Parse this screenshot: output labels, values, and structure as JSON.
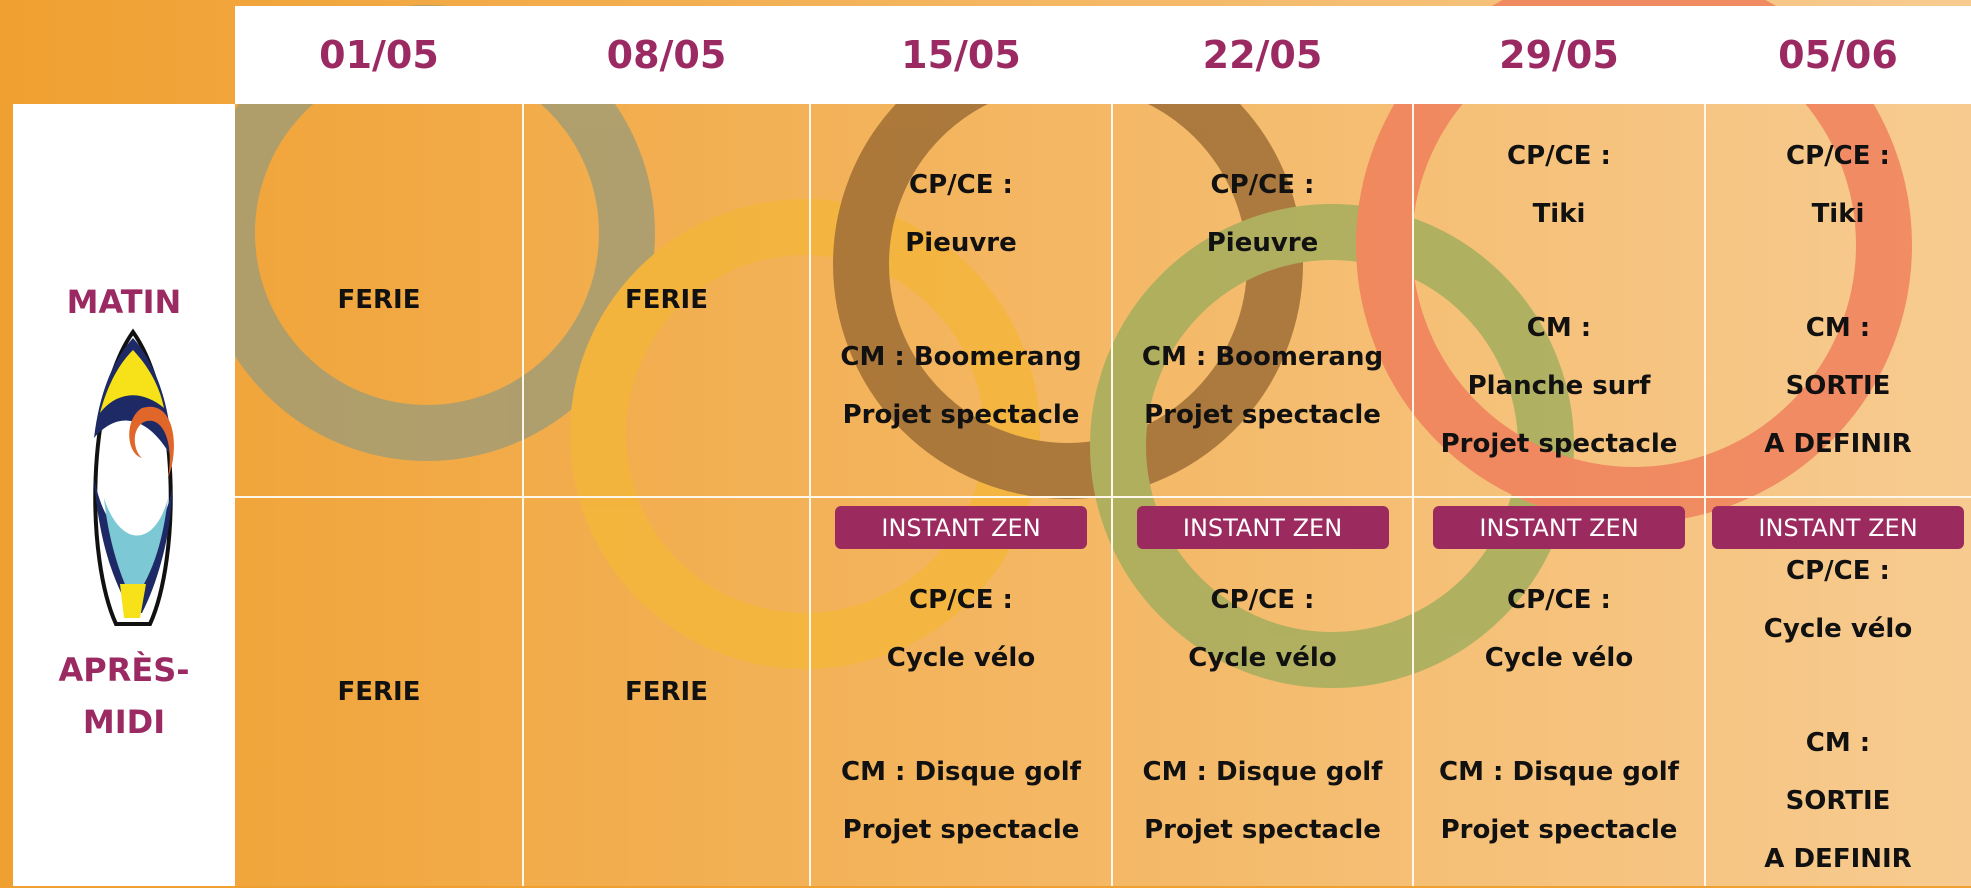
{
  "header": {
    "dates": [
      "01/05",
      "08/05",
      "15/05",
      "22/05",
      "29/05",
      "05/06"
    ]
  },
  "rows": {
    "morning": "MATIN",
    "afternoon": "APRÈS-MIDI"
  },
  "schedule": {
    "morning": [
      {
        "groups": [
          [
            "FERIE"
          ]
        ]
      },
      {
        "groups": [
          [
            "FERIE"
          ]
        ]
      },
      {
        "groups": [
          [
            "CP/CE :",
            "Pieuvre"
          ],
          [
            "CM : Boomerang",
            "Projet spectacle"
          ]
        ]
      },
      {
        "groups": [
          [
            "CP/CE :",
            "Pieuvre"
          ],
          [
            "CM : Boomerang",
            "Projet spectacle"
          ]
        ]
      },
      {
        "groups": [
          [
            "CP/CE :",
            "Tiki"
          ],
          [
            "CM :",
            "Planche surf",
            "Projet spectacle"
          ]
        ]
      },
      {
        "groups": [
          [
            "CP/CE :",
            "Tiki"
          ],
          [
            "CM :",
            "SORTIE",
            "A DEFINIR"
          ]
        ]
      }
    ],
    "afternoon": [
      {
        "groups": [
          [
            "FERIE"
          ]
        ]
      },
      {
        "groups": [
          [
            "FERIE"
          ]
        ]
      },
      {
        "badge": "INSTANT ZEN",
        "groups": [
          [
            "CP/CE :",
            "Cycle vélo"
          ],
          [
            "CM : Disque golf",
            "Projet spectacle"
          ]
        ]
      },
      {
        "badge": "INSTANT ZEN",
        "groups": [
          [
            "CP/CE :",
            "Cycle vélo"
          ],
          [
            "CM : Disque golf",
            "Projet spectacle"
          ]
        ]
      },
      {
        "badge": "INSTANT ZEN",
        "groups": [
          [
            "CP/CE :",
            "Cycle vélo"
          ],
          [
            "CM : Disque golf",
            "Projet spectacle"
          ]
        ]
      },
      {
        "badge": "INSTANT ZEN",
        "groups": [
          [
            "CP/CE :",
            "Cycle vélo"
          ],
          [
            "CM :",
            "SORTIE",
            "A DEFINIR"
          ]
        ]
      }
    ]
  }
}
